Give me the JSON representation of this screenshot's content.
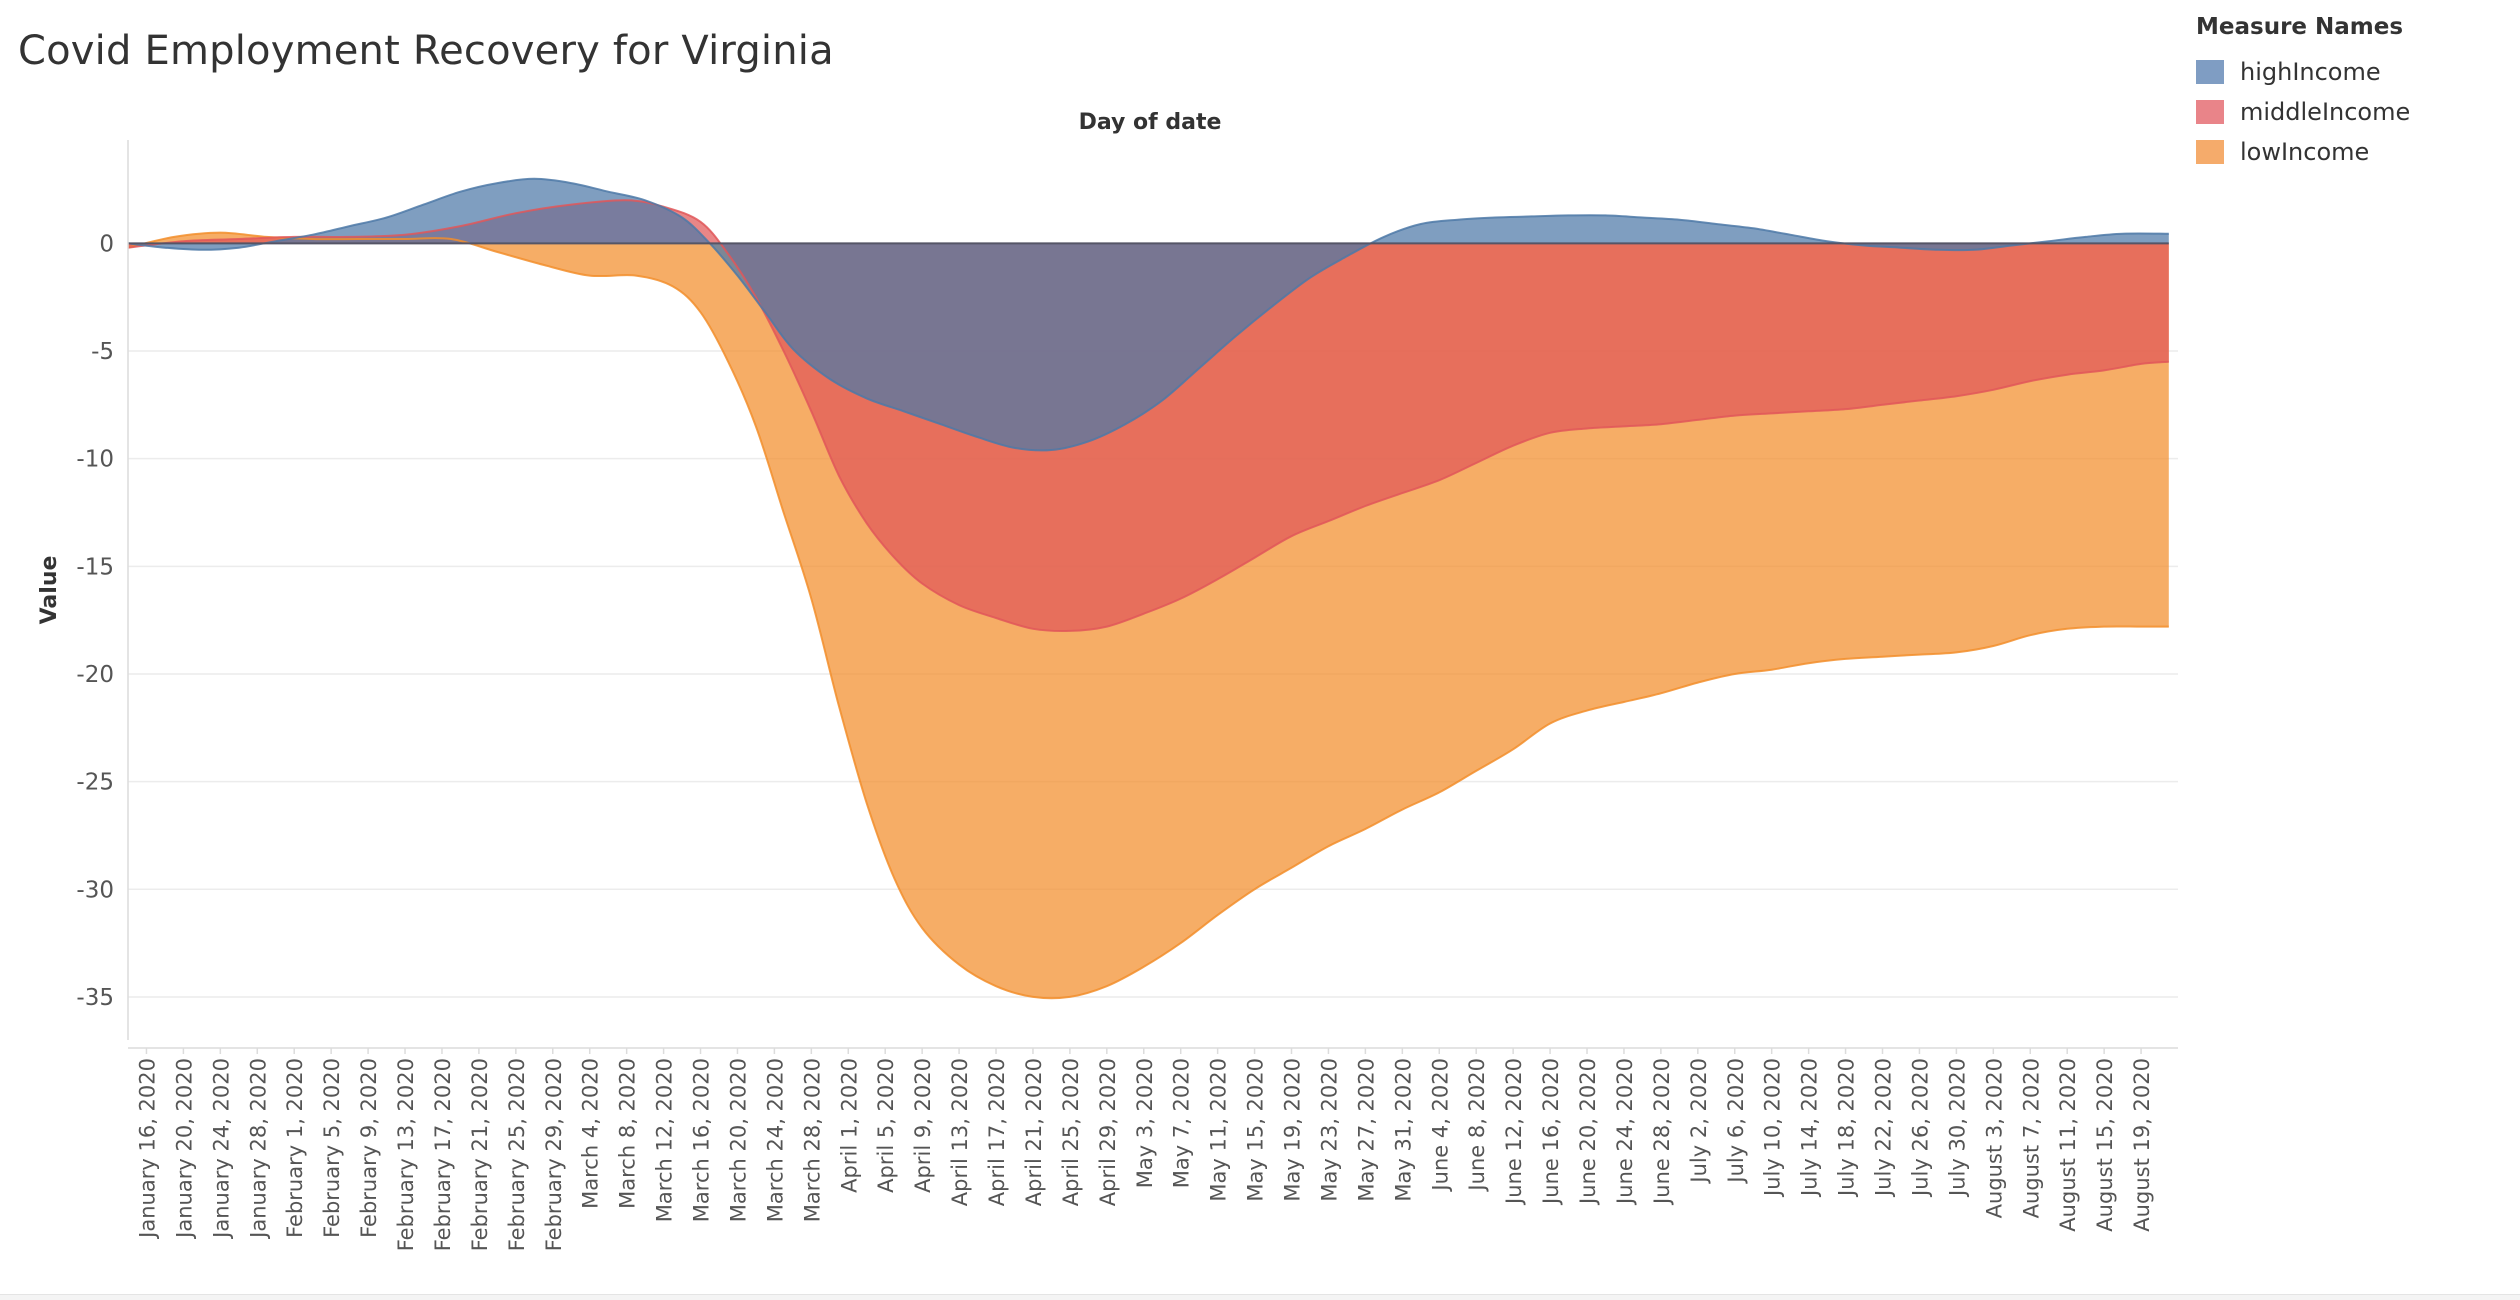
{
  "title": "Covid Employment Recovery for Virginia",
  "legend": {
    "title": "Measure Names",
    "items": [
      {
        "name": "highIncome",
        "color": "#4e79a7"
      },
      {
        "name": "middleIncome",
        "color": "#e15759"
      },
      {
        "name": "lowIncome",
        "color": "#f28e2b"
      }
    ]
  },
  "chart_data": {
    "type": "area",
    "title": "Covid Employment Recovery for Virginia",
    "xlabel": "Day of date",
    "ylabel": "Value",
    "ylim": [
      -37,
      4.8
    ],
    "xlim": [
      "2020-01-14",
      "2020-08-23"
    ],
    "yticks": [
      0,
      -5,
      -10,
      -15,
      -20,
      -25,
      -30,
      -35
    ],
    "xticks": [
      "January 16, 2020",
      "January 20, 2020",
      "January 24, 2020",
      "January 28, 2020",
      "February 1, 2020",
      "February 5, 2020",
      "February 9, 2020",
      "February 13, 2020",
      "February 17, 2020",
      "February 21, 2020",
      "February 25, 2020",
      "February 29, 2020",
      "March 4, 2020",
      "March 8, 2020",
      "March 12, 2020",
      "March 16, 2020",
      "March 20, 2020",
      "March 24, 2020",
      "March 28, 2020",
      "April 1, 2020",
      "April 5, 2020",
      "April 9, 2020",
      "April 13, 2020",
      "April 17, 2020",
      "April 21, 2020",
      "April 25, 2020",
      "April 29, 2020",
      "May 3, 2020",
      "May 7, 2020",
      "May 11, 2020",
      "May 15, 2020",
      "May 19, 2020",
      "May 23, 2020",
      "May 27, 2020",
      "May 31, 2020",
      "June 4, 2020",
      "June 8, 2020",
      "June 12, 2020",
      "June 16, 2020",
      "June 20, 2020",
      "June 24, 2020",
      "June 28, 2020",
      "July 2, 2020",
      "July 6, 2020",
      "July 10, 2020",
      "July 14, 2020",
      "July 18, 2020",
      "July 22, 2020",
      "July 26, 2020",
      "July 30, 2020",
      "August 3, 2020",
      "August 7, 2020",
      "August 11, 2020",
      "August 15, 2020",
      "August 19, 2020"
    ],
    "grid": true,
    "legend_position": "top-right",
    "series": [
      {
        "name": "lowIncome",
        "color": "#f28e2b",
        "x": [
          "2020-01-14",
          "2020-01-19",
          "2020-01-24",
          "2020-01-29",
          "2020-02-03",
          "2020-02-08",
          "2020-02-13",
          "2020-02-18",
          "2020-02-23",
          "2020-02-28",
          "2020-03-04",
          "2020-03-09",
          "2020-03-13",
          "2020-03-16",
          "2020-03-19",
          "2020-03-22",
          "2020-03-25",
          "2020-03-28",
          "2020-03-31",
          "2020-04-03",
          "2020-04-06",
          "2020-04-09",
          "2020-04-13",
          "2020-04-17",
          "2020-04-21",
          "2020-04-25",
          "2020-04-29",
          "2020-05-03",
          "2020-05-07",
          "2020-05-11",
          "2020-05-15",
          "2020-05-19",
          "2020-05-23",
          "2020-05-27",
          "2020-05-31",
          "2020-06-04",
          "2020-06-08",
          "2020-06-12",
          "2020-06-16",
          "2020-06-20",
          "2020-06-24",
          "2020-06-28",
          "2020-07-02",
          "2020-07-06",
          "2020-07-10",
          "2020-07-14",
          "2020-07-18",
          "2020-07-22",
          "2020-07-26",
          "2020-07-30",
          "2020-08-03",
          "2020-08-07",
          "2020-08-11",
          "2020-08-15",
          "2020-08-19",
          "2020-08-22"
        ],
        "values": [
          -0.2,
          0.3,
          0.5,
          0.3,
          0.2,
          0.2,
          0.2,
          0.2,
          -0.4,
          -1.0,
          -1.5,
          -1.5,
          -2.0,
          -3.2,
          -5.5,
          -8.5,
          -12.5,
          -16.5,
          -21.5,
          -26.0,
          -29.5,
          -31.8,
          -33.5,
          -34.5,
          -35.0,
          -35.0,
          -34.5,
          -33.6,
          -32.5,
          -31.2,
          -30.0,
          -29.0,
          -28.0,
          -27.2,
          -26.3,
          -25.5,
          -24.5,
          -23.5,
          -22.3,
          -21.7,
          -21.3,
          -20.9,
          -20.4,
          -20.0,
          -19.8,
          -19.5,
          -19.3,
          -19.2,
          -19.1,
          -19.0,
          -18.7,
          -18.2,
          -17.9,
          -17.8,
          -17.8,
          -17.8
        ]
      },
      {
        "name": "middleIncome",
        "color": "#e15759",
        "x": [
          "2020-01-14",
          "2020-01-20",
          "2020-01-26",
          "2020-02-01",
          "2020-02-07",
          "2020-02-13",
          "2020-02-19",
          "2020-02-25",
          "2020-03-02",
          "2020-03-08",
          "2020-03-12",
          "2020-03-16",
          "2020-03-19",
          "2020-03-22",
          "2020-03-25",
          "2020-03-28",
          "2020-03-31",
          "2020-04-03",
          "2020-04-06",
          "2020-04-09",
          "2020-04-13",
          "2020-04-17",
          "2020-04-21",
          "2020-04-25",
          "2020-04-29",
          "2020-05-03",
          "2020-05-07",
          "2020-05-11",
          "2020-05-15",
          "2020-05-19",
          "2020-05-23",
          "2020-05-27",
          "2020-05-31",
          "2020-06-04",
          "2020-06-08",
          "2020-06-12",
          "2020-06-16",
          "2020-06-20",
          "2020-06-24",
          "2020-06-28",
          "2020-07-02",
          "2020-07-06",
          "2020-07-10",
          "2020-07-14",
          "2020-07-18",
          "2020-07-22",
          "2020-07-26",
          "2020-07-30",
          "2020-08-03",
          "2020-08-07",
          "2020-08-11",
          "2020-08-15",
          "2020-08-19",
          "2020-08-22"
        ],
        "values": [
          -0.2,
          0.1,
          0.2,
          0.3,
          0.3,
          0.4,
          0.8,
          1.4,
          1.8,
          2.0,
          1.7,
          1.0,
          -0.5,
          -2.5,
          -5.0,
          -7.8,
          -10.8,
          -13.0,
          -14.6,
          -15.8,
          -16.8,
          -17.4,
          -17.9,
          -18.0,
          -17.8,
          -17.2,
          -16.5,
          -15.6,
          -14.6,
          -13.6,
          -12.9,
          -12.2,
          -11.6,
          -11.0,
          -10.2,
          -9.4,
          -8.8,
          -8.6,
          -8.5,
          -8.4,
          -8.2,
          -8.0,
          -7.9,
          -7.8,
          -7.7,
          -7.5,
          -7.3,
          -7.1,
          -6.8,
          -6.4,
          -6.1,
          -5.9,
          -5.6,
          -5.5
        ]
      },
      {
        "name": "highIncome",
        "color": "#4e79a7",
        "x": [
          "2020-01-14",
          "2020-01-18",
          "2020-01-22",
          "2020-01-26",
          "2020-01-30",
          "2020-02-03",
          "2020-02-07",
          "2020-02-11",
          "2020-02-15",
          "2020-02-19",
          "2020-02-23",
          "2020-02-27",
          "2020-03-02",
          "2020-03-06",
          "2020-03-10",
          "2020-03-14",
          "2020-03-17",
          "2020-03-20",
          "2020-03-23",
          "2020-03-26",
          "2020-03-30",
          "2020-04-03",
          "2020-04-07",
          "2020-04-11",
          "2020-04-15",
          "2020-04-19",
          "2020-04-23",
          "2020-04-27",
          "2020-05-01",
          "2020-05-05",
          "2020-05-09",
          "2020-05-13",
          "2020-05-17",
          "2020-05-21",
          "2020-05-25",
          "2020-05-29",
          "2020-06-02",
          "2020-06-06",
          "2020-06-10",
          "2020-06-14",
          "2020-06-18",
          "2020-06-22",
          "2020-06-26",
          "2020-06-30",
          "2020-07-04",
          "2020-07-08",
          "2020-07-12",
          "2020-07-16",
          "2020-07-20",
          "2020-07-24",
          "2020-07-28",
          "2020-08-01",
          "2020-08-05",
          "2020-08-09",
          "2020-08-13",
          "2020-08-17",
          "2020-08-22"
        ],
        "values": [
          0.0,
          -0.2,
          -0.3,
          -0.2,
          0.1,
          0.4,
          0.8,
          1.2,
          1.8,
          2.4,
          2.8,
          3.0,
          2.8,
          2.4,
          2.0,
          1.2,
          0.0,
          -1.5,
          -3.2,
          -4.9,
          -6.3,
          -7.2,
          -7.8,
          -8.4,
          -9.0,
          -9.5,
          -9.6,
          -9.2,
          -8.4,
          -7.3,
          -5.8,
          -4.3,
          -2.9,
          -1.6,
          -0.6,
          0.3,
          0.9,
          1.1,
          1.2,
          1.25,
          1.3,
          1.3,
          1.2,
          1.1,
          0.9,
          0.7,
          0.4,
          0.1,
          -0.1,
          -0.2,
          -0.3,
          -0.3,
          -0.1,
          0.1,
          0.3,
          0.45,
          0.45
        ]
      }
    ]
  }
}
